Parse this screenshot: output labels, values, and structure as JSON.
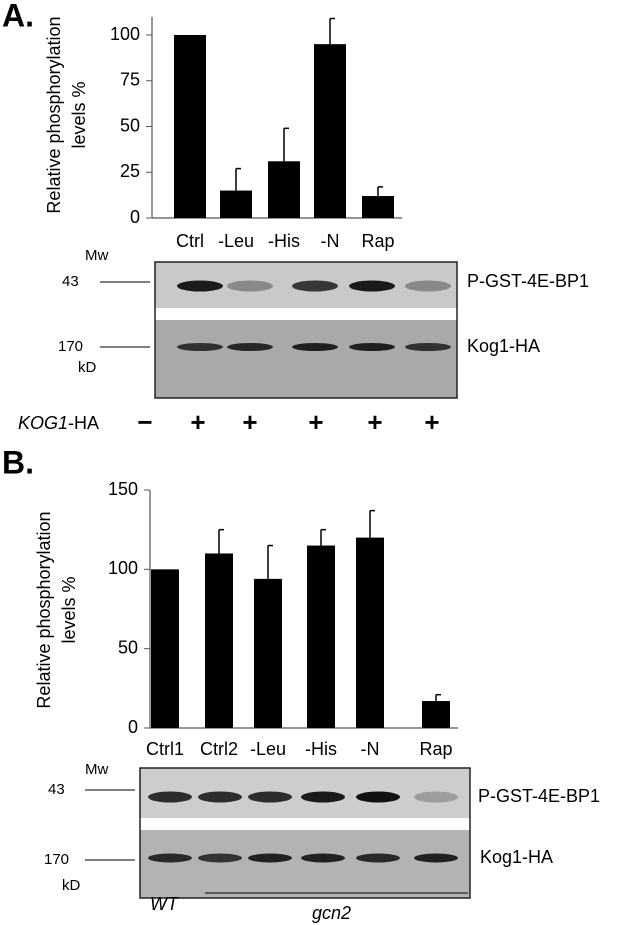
{
  "chart_data": [
    {
      "type": "bar",
      "panel": "A.",
      "ylabel": [
        "Relative phosphorylation",
        "levels %"
      ],
      "categories": [
        "Ctrl",
        "-Leu",
        "-His",
        "-N",
        "Rap"
      ],
      "values": [
        100,
        15,
        31,
        95,
        12
      ],
      "errors": [
        null,
        12,
        18,
        14,
        5
      ],
      "color": "#000000",
      "ylim": [
        0,
        110
      ],
      "yticks": [
        0,
        25,
        50,
        75,
        100
      ]
    },
    {
      "type": "bar",
      "panel": "B.",
      "ylabel": [
        "Relative phosphorylation",
        "levels %"
      ],
      "categories": [
        "Ctrl1",
        "Ctrl2",
        "-Leu",
        "-His",
        "-N",
        "Rap"
      ],
      "values": [
        100,
        110,
        94,
        115,
        120,
        17
      ],
      "errors": [
        null,
        15,
        21,
        10,
        17,
        4
      ],
      "color": "#000000",
      "ylim": [
        0,
        150
      ],
      "yticks": [
        0,
        50,
        100,
        150
      ]
    }
  ],
  "blots": [
    {
      "mw": "Mw",
      "marker_top": "43",
      "marker_bottom": "170",
      "unit": "kD",
      "band_top": "P-GST-4E-BP1",
      "band_bottom": "Kog1-HA",
      "genotype": {
        "gene": "KOG1",
        "suffix": "-HA",
        "signs": [
          "−",
          "+",
          "+",
          "+",
          "+",
          "+"
        ]
      }
    },
    {
      "mw": "Mw",
      "marker_top": "43",
      "marker_bottom": "170",
      "unit": "kD",
      "band_top": "P-GST-4E-BP1",
      "band_bottom": "Kog1-HA",
      "strains": [
        "WT",
        "gcn2"
      ]
    }
  ]
}
